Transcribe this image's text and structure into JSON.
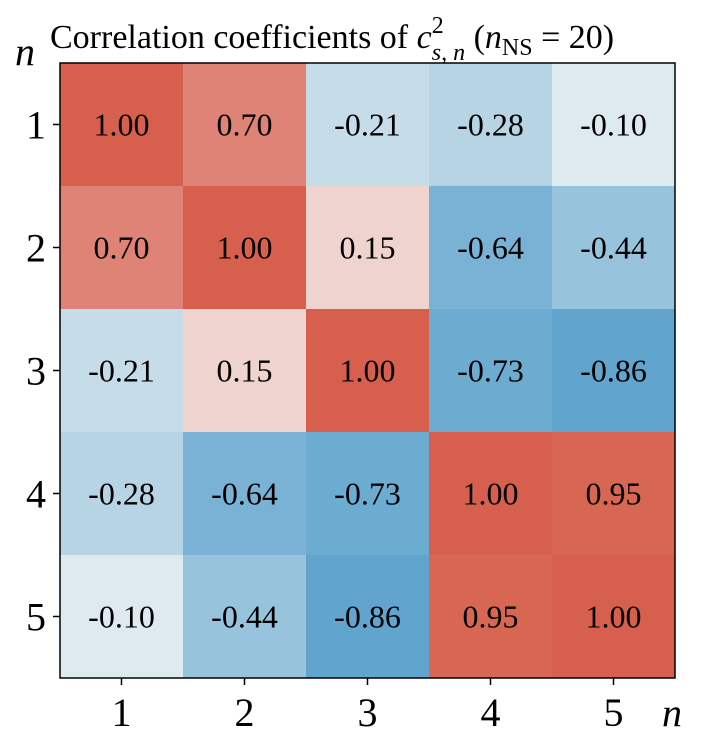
{
  "chart_data": {
    "type": "heatmap",
    "title": {
      "prefix": "Correlation coefficients of ",
      "symbol": "c",
      "superscript": "2",
      "subscript": "s, n",
      "paren_open": " (",
      "nvar": "n",
      "nsub": "NS",
      "equals_value": " = 20)"
    },
    "xlabel": "n",
    "ylabel": "n",
    "x_categories": [
      "1",
      "2",
      "3",
      "4",
      "5"
    ],
    "y_categories": [
      "1",
      "2",
      "3",
      "4",
      "5"
    ],
    "values": [
      [
        1.0,
        0.7,
        -0.21,
        -0.28,
        -0.1
      ],
      [
        0.7,
        1.0,
        0.15,
        -0.64,
        -0.44
      ],
      [
        -0.21,
        0.15,
        1.0,
        -0.73,
        -0.86
      ],
      [
        -0.28,
        -0.64,
        -0.73,
        1.0,
        0.95
      ],
      [
        -0.1,
        -0.44,
        -0.86,
        0.95,
        1.0
      ]
    ],
    "labels": [
      [
        "1.00",
        "0.70",
        "-0.21",
        "-0.28",
        "-0.10"
      ],
      [
        "0.70",
        "1.00",
        "0.15",
        "-0.64",
        "-0.44"
      ],
      [
        "-0.21",
        "0.15",
        "1.00",
        "-0.73",
        "-0.86"
      ],
      [
        "-0.28",
        "-0.64",
        "-0.73",
        "1.00",
        "0.95"
      ],
      [
        "-0.10",
        "-0.44",
        "-0.86",
        "0.95",
        "1.00"
      ]
    ],
    "value_range": [
      -1,
      1
    ],
    "colormap": "RdBu_r",
    "color_stops": {
      "negative": "#5aa1cc",
      "zero": "#f7f7f7",
      "positive": "#d6604d"
    }
  }
}
